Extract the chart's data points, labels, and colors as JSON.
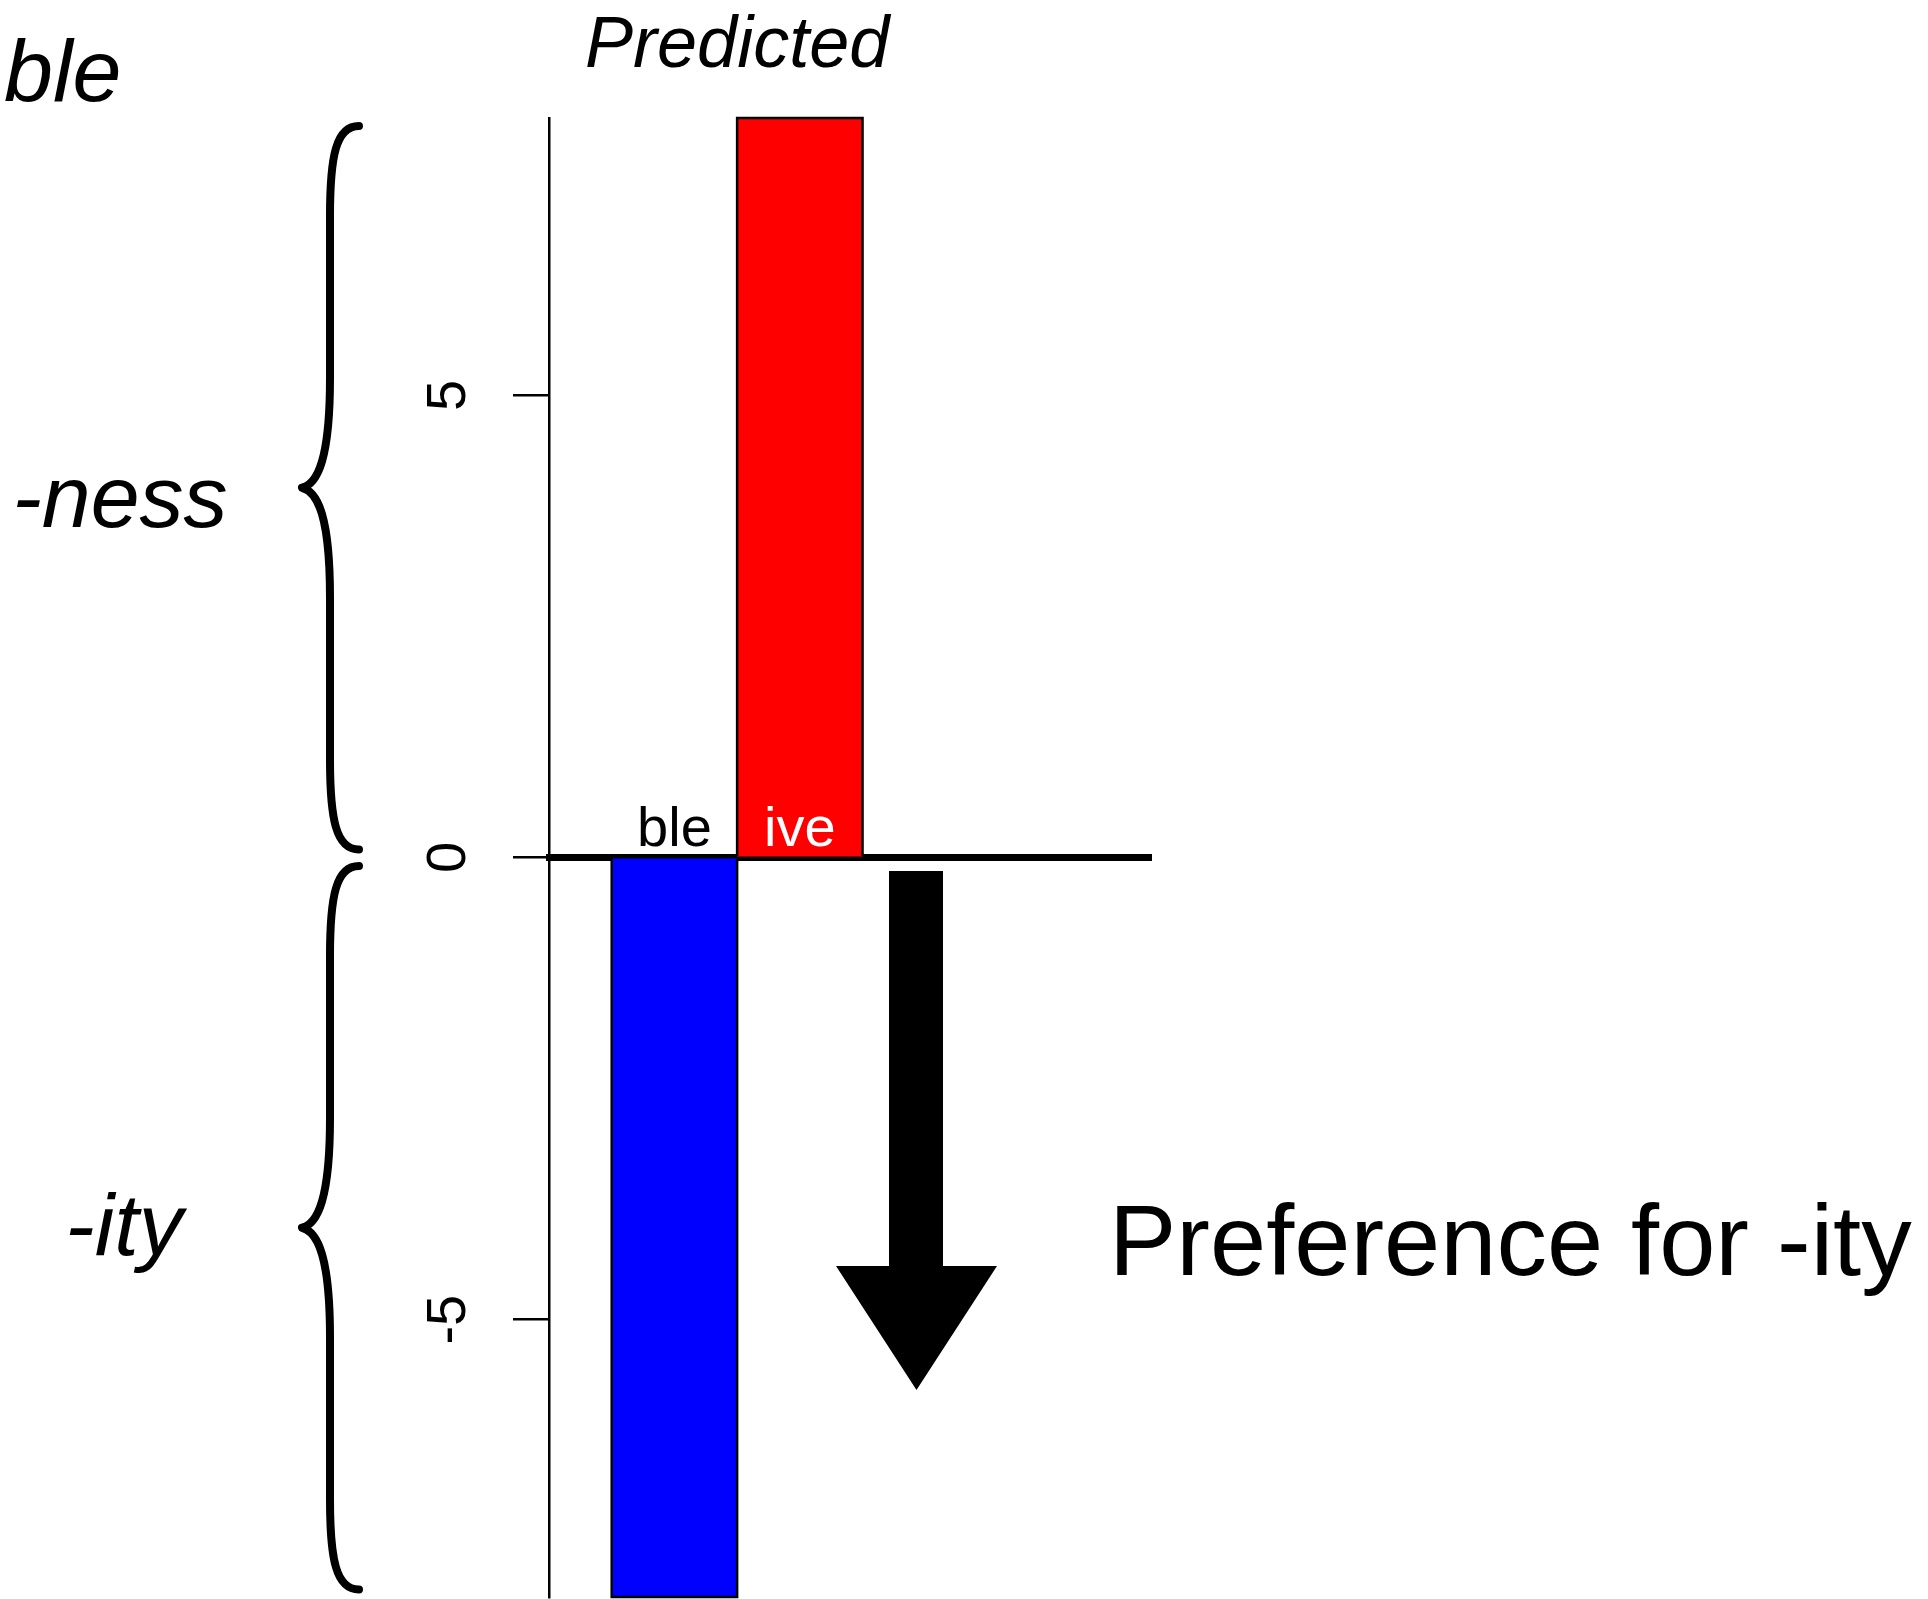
{
  "chart_data": {
    "type": "bar",
    "title": "Predicted",
    "categories": [
      "ble",
      "ive"
    ],
    "values": [
      -8,
      8
    ],
    "colors": [
      "#0000ff",
      "#ff0000"
    ],
    "ylim": [
      -8,
      8
    ],
    "yticks": [
      -5,
      0,
      5
    ],
    "annotations": [
      "ble",
      "-ness",
      "-ity",
      "Preference for -ity"
    ]
  }
}
